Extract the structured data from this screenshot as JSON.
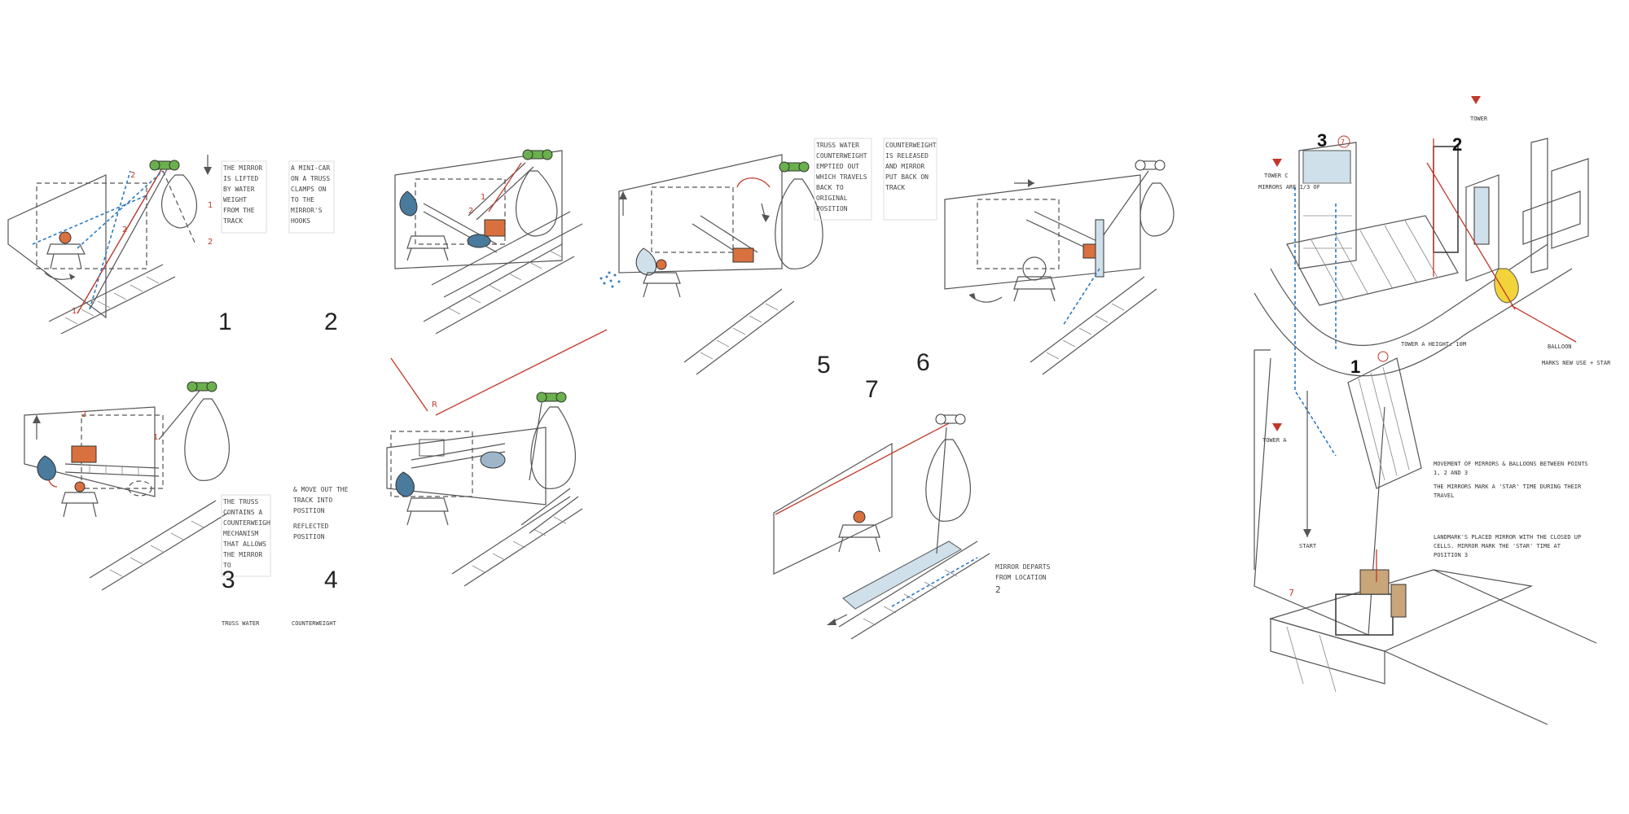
{
  "colors": {
    "paper": "#ffffff",
    "ink": "#444444",
    "winch_green": "#6ab04c",
    "counterweight_orange": "#d8713f",
    "bag_blue": "#4a7a9c",
    "annotation_red": "#c0392b",
    "water_blue": "#2f7bbf",
    "highlight_yellow": "#f2d43a"
  },
  "panels": [
    {
      "number": "1",
      "note": "THE MIRROR IS LIFTED BY WATER WEIGHT FROM THE TRACK"
    },
    {
      "number": "2",
      "note": "A MINI-CAR ON A TRUSS CLAMPS ON TO THE MIRROR'S HOOKS"
    },
    {
      "number": "3",
      "note": "THE TRUSS CONTAINS A COUNTERWEIGHT MECHANISM THAT ALLOWS THE MIRROR TO"
    },
    {
      "number": "4",
      "note": "& MOVE OUT THE TRACK INTO POSITION",
      "note2": "REFLECTED POSITION"
    },
    {
      "number": "5",
      "note": "TRUSS WATER COUNTERWEIGHT EMPTIED OUT WHICH TRAVELS BACK TO ORIGINAL POSITION"
    },
    {
      "number": "6",
      "note": "COUNTERWEIGHT IS RELEASED AND MIRROR PUT BACK ON TRACK"
    },
    {
      "number": "7",
      "note": "MIRROR DEPARTS FROM LOCATION",
      "note2": "2"
    }
  ],
  "footers": {
    "left": "TRUSS WATER",
    "right": "COUNTERWEIGHT"
  },
  "plan": {
    "labels": {
      "one": "1",
      "two": "2",
      "three": "3",
      "seven": "7",
      "circle_seven": "7"
    },
    "notes": {
      "tower_c": "TOWER C",
      "tower_c_sub": "MIRRORS ARE 1/3 OF",
      "tower_top": "TOWER",
      "tower_a": "TOWER A",
      "tower_a_height": "TOWER A HEIGHT: 10M",
      "balloon": "BALLOON",
      "balloon_sub": "MARKS NEW USE + STAR",
      "start": "START",
      "movement": "MOVEMENT OF MIRRORS & BALLOONS BETWEEN POINTS 1, 2 AND 3",
      "mirrors_mark": "THE MIRRORS MARK A 'STAR' TIME DURING THEIR TRAVEL",
      "landmark": "LANDMARK'S PLACED MIRROR WITH THE CLOSED UP CELLS. MIRROR MARK THE 'STAR' TIME AT POSITION 3",
      "tag_red": "R"
    }
  }
}
